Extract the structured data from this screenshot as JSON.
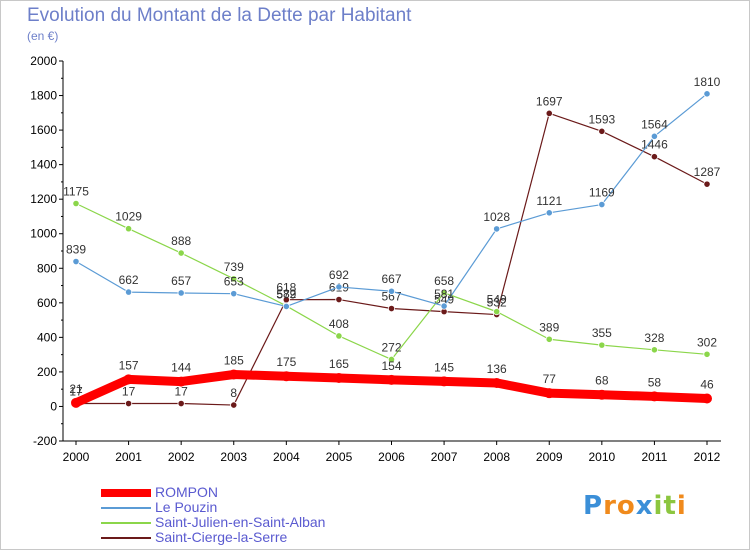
{
  "chart_data": {
    "type": "line",
    "title": "Evolution du Montant de la Dette par Habitant",
    "subtitle": "(en €)",
    "x": [
      "2000",
      "2001",
      "2002",
      "2003",
      "2004",
      "2005",
      "2006",
      "2007",
      "2008",
      "2009",
      "2010",
      "2011",
      "2012"
    ],
    "ylim": [
      -200,
      2000
    ],
    "yticks": [
      -200,
      0,
      200,
      400,
      600,
      800,
      1000,
      1200,
      1400,
      1600,
      1800,
      2000
    ],
    "grid": false,
    "legend_position": "bottom-left",
    "series": [
      {
        "name": "ROMPON",
        "color": "#ff0000",
        "values": [
          21,
          157,
          144,
          185,
          175,
          165,
          154,
          145,
          136,
          77,
          68,
          58,
          46
        ]
      },
      {
        "name": "Le Pouzin",
        "color": "#5b9bd5",
        "values": [
          839,
          662,
          657,
          653,
          579,
          692,
          667,
          581,
          1028,
          1121,
          1169,
          1564,
          1810
        ]
      },
      {
        "name": "Saint-Julien-en-Saint-Alban",
        "color": "#8bd64a",
        "values": [
          1175,
          1029,
          888,
          739,
          582,
          408,
          272,
          658,
          549,
          389,
          355,
          328,
          302
        ]
      },
      {
        "name": "Saint-Cierge-la-Serre",
        "color": "#6b1a1a",
        "values": [
          17,
          17,
          17,
          8,
          618,
          619,
          567,
          549,
          532,
          1697,
          1593,
          1446,
          1287
        ]
      }
    ]
  },
  "logo": {
    "letters": [
      "P",
      "r",
      "o",
      "x",
      "i",
      "t",
      "i"
    ],
    "colors": [
      "#3b8fd8",
      "#f08a1c",
      "#f08a1c",
      "#3b8fd8",
      "#8cc63f",
      "#8cc63f",
      "#f08a1c"
    ]
  }
}
